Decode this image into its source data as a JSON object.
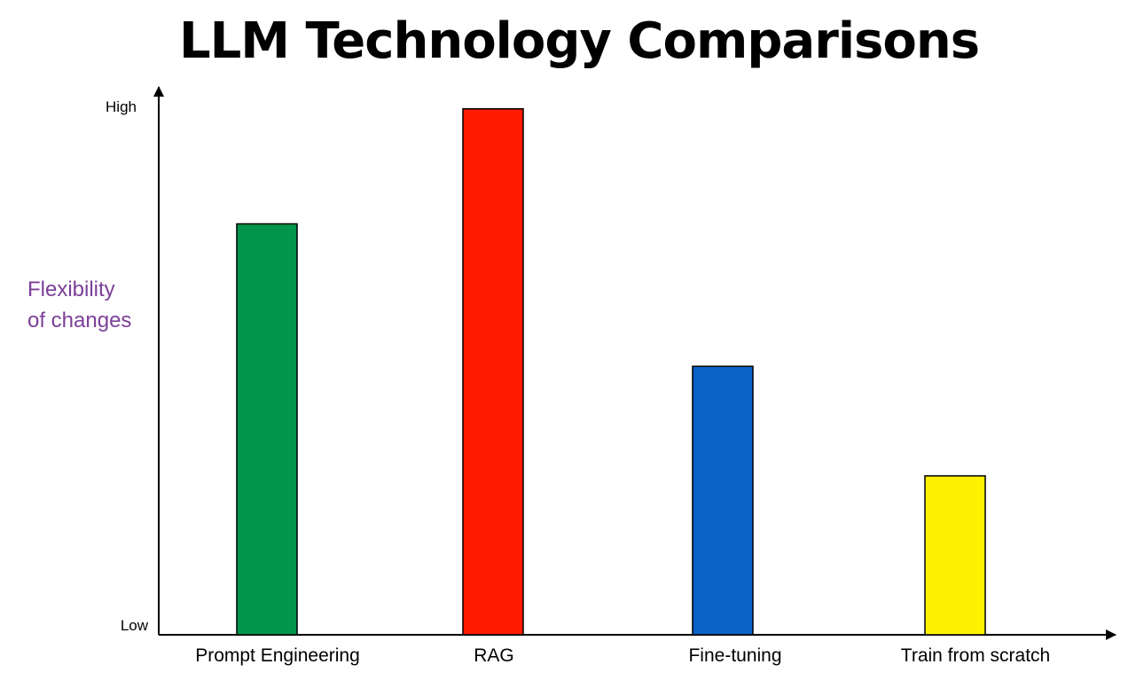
{
  "chart_data": {
    "type": "bar",
    "title": "LLM Technology Comparisons",
    "xlabel": "",
    "ylabel_lines": [
      "Flexibility",
      "of changes"
    ],
    "ylabel_color": "#7b3f98",
    "y_tick_labels": {
      "low": "Low",
      "high": "High"
    },
    "ylim": [
      0,
      10
    ],
    "categories": [
      "Prompt Engineering",
      "RAG",
      "Fine-tuning",
      "Train from scratch"
    ],
    "values": [
      7.5,
      9.6,
      4.9,
      2.9
    ],
    "colors": [
      "#00954b",
      "#ff1a00",
      "#0a63c5",
      "#fff200"
    ],
    "bar_outline_color": "#000000",
    "axis_color": "#000000",
    "grid": false
  }
}
